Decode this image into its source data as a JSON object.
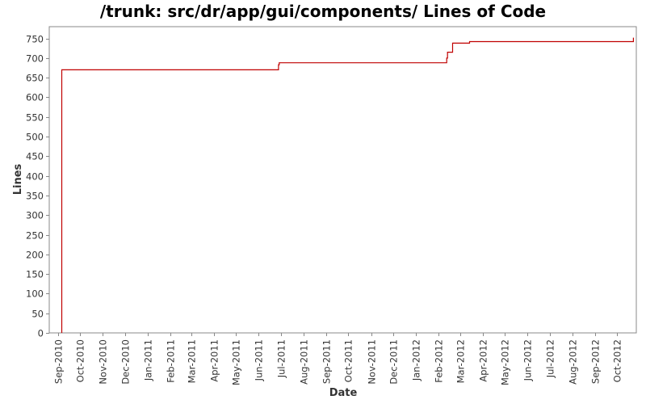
{
  "chart_data": {
    "type": "line",
    "title": "/trunk: src/dr/app/gui/components/ Lines of Code",
    "xlabel": "Date",
    "ylabel": "Lines",
    "ylim": [
      0,
      780
    ],
    "xlim": [
      "2010-08-20",
      "2012-10-27"
    ],
    "yticks": [
      0,
      50,
      100,
      150,
      200,
      250,
      300,
      350,
      400,
      450,
      500,
      550,
      600,
      650,
      700,
      750
    ],
    "xticks": [
      {
        "date": "2010-09-01",
        "label": "Sep-2010"
      },
      {
        "date": "2010-10-01",
        "label": "Oct-2010"
      },
      {
        "date": "2010-11-01",
        "label": "Nov-2010"
      },
      {
        "date": "2010-12-01",
        "label": "Dec-2010"
      },
      {
        "date": "2011-01-01",
        "label": "Jan-2011"
      },
      {
        "date": "2011-02-01",
        "label": "Feb-2011"
      },
      {
        "date": "2011-03-01",
        "label": "Mar-2011"
      },
      {
        "date": "2011-04-01",
        "label": "Apr-2011"
      },
      {
        "date": "2011-05-01",
        "label": "May-2011"
      },
      {
        "date": "2011-06-01",
        "label": "Jun-2011"
      },
      {
        "date": "2011-07-01",
        "label": "Jul-2011"
      },
      {
        "date": "2011-08-01",
        "label": "Aug-2011"
      },
      {
        "date": "2011-09-01",
        "label": "Sep-2011"
      },
      {
        "date": "2011-10-01",
        "label": "Oct-2011"
      },
      {
        "date": "2011-11-01",
        "label": "Nov-2011"
      },
      {
        "date": "2011-12-01",
        "label": "Dec-2011"
      },
      {
        "date": "2012-01-01",
        "label": "Jan-2012"
      },
      {
        "date": "2012-02-01",
        "label": "Feb-2012"
      },
      {
        "date": "2012-03-01",
        "label": "Mar-2012"
      },
      {
        "date": "2012-04-01",
        "label": "Apr-2012"
      },
      {
        "date": "2012-05-01",
        "label": "May-2012"
      },
      {
        "date": "2012-06-01",
        "label": "Jun-2012"
      },
      {
        "date": "2012-07-01",
        "label": "Jul-2012"
      },
      {
        "date": "2012-08-01",
        "label": "Aug-2012"
      },
      {
        "date": "2012-09-01",
        "label": "Sep-2012"
      },
      {
        "date": "2012-10-01",
        "label": "Oct-2012"
      }
    ],
    "series": [
      {
        "color": "#c00000",
        "step": true,
        "points": [
          {
            "x": "2010-09-06",
            "y": 0
          },
          {
            "x": "2010-09-06",
            "y": 670
          },
          {
            "x": "2011-06-28",
            "y": 670
          },
          {
            "x": "2011-06-28",
            "y": 683
          },
          {
            "x": "2011-06-29",
            "y": 683
          },
          {
            "x": "2011-06-29",
            "y": 688
          },
          {
            "x": "2012-02-12",
            "y": 688
          },
          {
            "x": "2012-02-12",
            "y": 700
          },
          {
            "x": "2012-02-13",
            "y": 700
          },
          {
            "x": "2012-02-13",
            "y": 715
          },
          {
            "x": "2012-02-20",
            "y": 715
          },
          {
            "x": "2012-02-20",
            "y": 738
          },
          {
            "x": "2012-03-14",
            "y": 738
          },
          {
            "x": "2012-03-14",
            "y": 742
          },
          {
            "x": "2012-10-23",
            "y": 742
          },
          {
            "x": "2012-10-23",
            "y": 752
          }
        ]
      }
    ],
    "grid": false,
    "legend": "none"
  }
}
